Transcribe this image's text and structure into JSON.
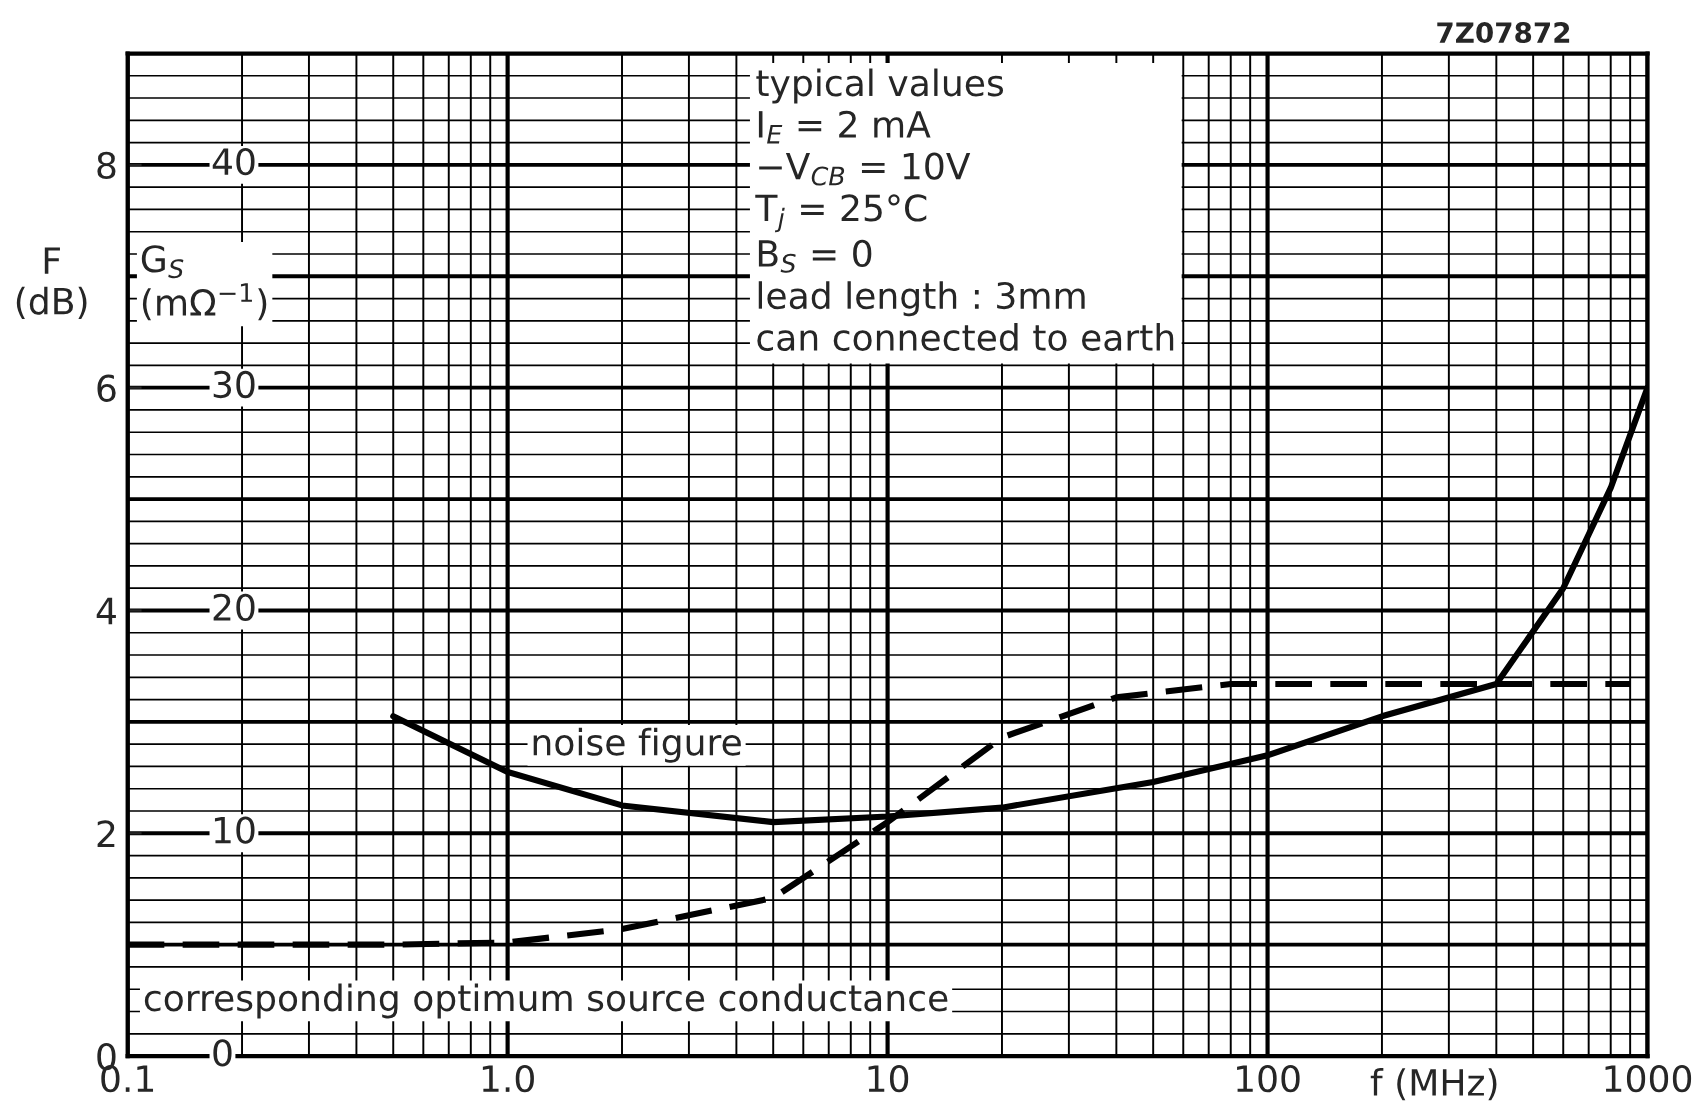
{
  "chart_data": {
    "type": "line",
    "xlabel": "f (MHz)",
    "ylabel": "F\n(dB)",
    "y2label": "G$_{S}$\n(mΩ$^{−1}$)",
    "log": "x",
    "grid": true,
    "legend": false,
    "xlim": [
      0.1,
      1000
    ],
    "xticks": [
      {
        "value": 0.1,
        "label": "0.1"
      },
      {
        "value": 1,
        "label": "1.0"
      },
      10,
      100,
      1000
    ],
    "ylim": [
      0,
      9
    ],
    "yticks": [
      0,
      2,
      4,
      6,
      8
    ],
    "y2lim": [
      0,
      45
    ],
    "y2ticks": [
      0,
      10,
      20,
      30,
      40
    ],
    "series": [
      {
        "name": "noise figure",
        "color": "#000000",
        "line_style": "solid",
        "x": [
          0.5,
          1,
          2,
          5,
          10,
          20,
          50,
          100,
          200,
          400,
          600,
          800,
          1000
        ],
        "values": [
          3.05,
          2.55,
          2.25,
          2.1,
          2.15,
          2.23,
          2.46,
          2.7,
          3.05,
          3.34,
          4.2,
          5.1,
          6.0
        ]
      },
      {
        "name": "corresponding optimum source conductance",
        "color": "#000000",
        "line_style": "dashed",
        "axis": "y2",
        "x": [
          0.1,
          0.5,
          1,
          2,
          5,
          10,
          20,
          40,
          80,
          200,
          900
        ],
        "values": [
          5,
          5,
          5.1,
          5.7,
          7.1,
          10.5,
          14.3,
          16.1,
          16.7,
          16.7,
          16.7
        ]
      }
    ],
    "annotations": [
      "typical values\nI$_{E}$ = 2 mA\n−V$_{CB}$ = 10V\nT$_{j}$ = 25°C\nB$_{S}$ = 0\nlead length : 3mm\ncan connected to earth",
      "7Z07872"
    ]
  }
}
